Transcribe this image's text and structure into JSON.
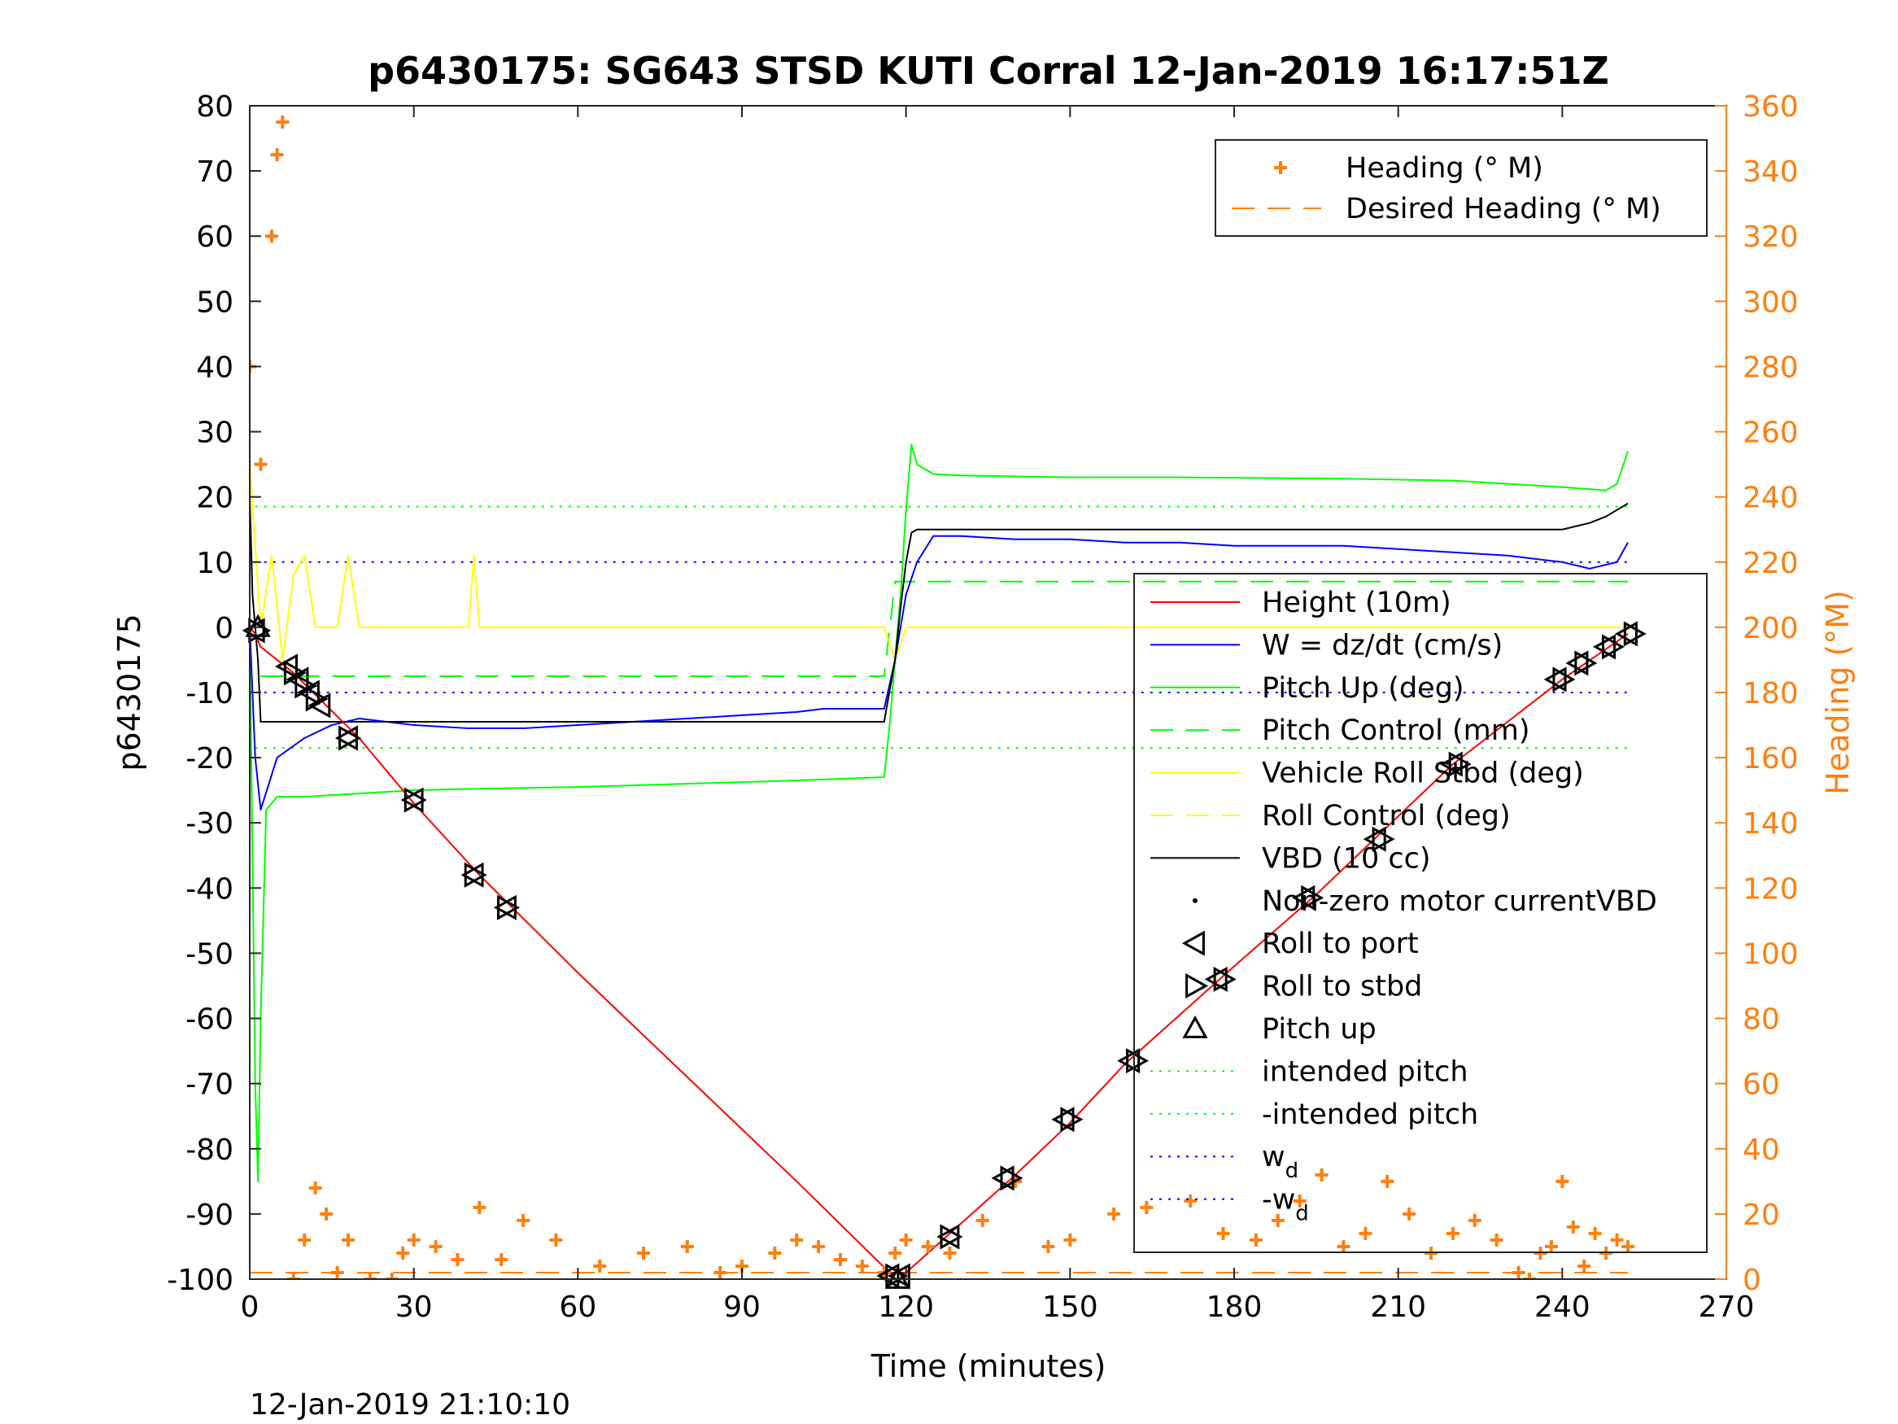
{
  "chart_data": {
    "type": "line",
    "title": "p6430175: SG643 STSD KUTI Corral 12-Jan-2019 16:17:51Z",
    "xlabel": "Time (minutes)",
    "ylabel": "p6430175",
    "ylabel_right": "Heading (°M)",
    "footer": "12-Jan-2019 21:10:10",
    "xlim": [
      0,
      270
    ],
    "ylim": [
      -100,
      80
    ],
    "ylim_right": [
      0,
      360
    ],
    "xticks": [
      "0",
      "30",
      "60",
      "90",
      "120",
      "150",
      "180",
      "210",
      "240",
      "270"
    ],
    "yticks_left": [
      "80",
      "70",
      "60",
      "50",
      "40",
      "30",
      "20",
      "10",
      "0",
      "-10",
      "-20",
      "-30",
      "-40",
      "-50",
      "-60",
      "-70",
      "-80",
      "-90",
      "-100"
    ],
    "yticks_right": [
      "360",
      "340",
      "320",
      "300",
      "280",
      "260",
      "240",
      "220",
      "200",
      "180",
      "160",
      "140",
      "120",
      "100",
      "80",
      "60",
      "40",
      "20",
      "0"
    ],
    "grid": false,
    "legend_upper": {
      "placement": "top-right",
      "entries": [
        "Heading (° M)",
        "Desired Heading (° M)"
      ]
    },
    "legend_lower": {
      "placement": "right",
      "entries": [
        "Height (10m)",
        "W = dz/dt (cm/s)",
        "Pitch Up (deg)",
        "Pitch Control (mm)",
        "Vehicle Roll Stbd (deg)",
        "Roll Control (deg)",
        "VBD (10 cc)",
        "Non-zero motor currentVBD",
        "Roll to port",
        "Roll to stbd",
        "Pitch up",
        "intended pitch",
        "-intended pitch",
        "w",
        "-w"
      ],
      "subscript": "d"
    },
    "colors": {
      "height": "#ff0000",
      "w": "#0000ff",
      "pitch": "#00ff00",
      "roll": "#ffff00",
      "vbd": "#000000",
      "heading": "#ff7f0e"
    },
    "series": [
      {
        "name": "Height (10m)",
        "x": [
          0,
          1,
          2,
          8,
          14,
          20,
          30,
          42,
          48,
          60,
          80,
          100,
          117,
          120,
          128,
          140,
          150,
          160,
          180,
          195,
          205,
          220,
          240,
          252
        ],
        "y": [
          0,
          -1,
          -3,
          -7,
          -12,
          -17,
          -27,
          -38,
          -43,
          -53,
          -69,
          -85,
          -99,
          -99,
          -93,
          -84,
          -76,
          -67,
          -52,
          -41,
          -33,
          -21,
          -8,
          -1
        ]
      },
      {
        "name": "W = dz/dt (cm/s)",
        "x": [
          0,
          1,
          2,
          5,
          10,
          15,
          20,
          30,
          40,
          50,
          60,
          70,
          80,
          90,
          100,
          105,
          110,
          116,
          118,
          120,
          122,
          125,
          130,
          140,
          150,
          160,
          170,
          180,
          190,
          200,
          210,
          220,
          230,
          240,
          245,
          250,
          252
        ],
        "y": [
          0,
          -20,
          -28,
          -20,
          -17,
          -15,
          -14,
          -15,
          -15.5,
          -15.5,
          -15,
          -14.5,
          -14,
          -13.5,
          -13,
          -12.5,
          -12.5,
          -12.5,
          -5,
          5,
          10,
          14,
          14,
          13.5,
          13.5,
          13,
          13,
          12.5,
          12.5,
          12.5,
          12,
          11.5,
          11,
          10,
          9,
          10,
          13
        ]
      },
      {
        "name": "Pitch Up (deg)",
        "x": [
          0,
          1,
          1.5,
          2,
          3,
          5,
          10,
          20,
          30,
          40,
          60,
          80,
          100,
          116,
          117,
          118,
          119,
          120,
          121,
          122,
          125,
          130,
          150,
          170,
          200,
          220,
          240,
          248,
          250,
          252
        ],
        "y": [
          0,
          -70,
          -85,
          -60,
          -28,
          -26,
          -26,
          -25.5,
          -25,
          -24.8,
          -24.5,
          -24,
          -23.5,
          -23,
          -15,
          -5,
          5,
          18,
          28,
          25,
          23.5,
          23.3,
          23,
          23,
          22.8,
          22.5,
          21.5,
          21,
          22,
          27
        ]
      },
      {
        "name": "Pitch Control (mm)",
        "x": [
          2,
          116,
          118,
          252
        ],
        "y": [
          -7.5,
          -7.5,
          7,
          7
        ]
      },
      {
        "name": "Vehicle Roll Stbd (deg)",
        "x": [
          0,
          2,
          4,
          6,
          8,
          10,
          12,
          16,
          18,
          20,
          40,
          41,
          42,
          60,
          100,
          116,
          118,
          120,
          140,
          180,
          200,
          252
        ],
        "y": [
          25,
          0,
          11,
          -5,
          8,
          11,
          0,
          0,
          11,
          0,
          0,
          11,
          0,
          0,
          0,
          0,
          -5,
          0,
          0,
          0,
          0,
          0
        ]
      },
      {
        "name": "VBD (10 cc)",
        "x": [
          0,
          0.5,
          1.5,
          2,
          116,
          118,
          119,
          120,
          121,
          122,
          240,
          245,
          248,
          250,
          252
        ],
        "y": [
          20,
          5,
          -5,
          -14.5,
          -14.5,
          -5,
          3,
          10,
          14.5,
          15,
          15,
          16,
          17,
          18,
          19
        ]
      },
      {
        "name": "Heading (° M)",
        "axis": "right",
        "x": [
          0,
          2,
          4,
          5,
          6,
          8,
          10,
          12,
          14,
          16,
          18,
          22,
          26,
          28,
          30,
          34,
          38,
          42,
          46,
          50,
          56,
          64,
          72,
          80,
          86,
          90,
          96,
          100,
          104,
          108,
          112,
          116,
          118,
          120,
          124,
          128,
          134,
          140,
          146,
          150,
          158,
          164,
          172,
          178,
          184,
          188,
          192,
          196,
          200,
          204,
          208,
          212,
          216,
          220,
          224,
          228,
          232,
          234,
          236,
          238,
          240,
          242,
          244,
          246,
          248,
          250,
          252
        ],
        "y": [
          280,
          250,
          320,
          345,
          355,
          0,
          12,
          28,
          20,
          2,
          12,
          0,
          0,
          8,
          12,
          10,
          6,
          22,
          6,
          18,
          12,
          4,
          8,
          10,
          2,
          4,
          8,
          12,
          10,
          6,
          4,
          2,
          8,
          12,
          10,
          8,
          18,
          30,
          10,
          12,
          20,
          22,
          24,
          14,
          12,
          18,
          24,
          32,
          10,
          14,
          30,
          20,
          8,
          14,
          18,
          12,
          2,
          0,
          8,
          10,
          30,
          16,
          4,
          14,
          8,
          12,
          10
        ]
      },
      {
        "name": "Desired Heading (° M)",
        "axis": "right",
        "x": [
          0,
          252
        ],
        "y": [
          2,
          2
        ]
      }
    ],
    "reference_lines": [
      {
        "name": "intended pitch",
        "y": 18.5
      },
      {
        "name": "-intended pitch",
        "y": -18.5
      },
      {
        "name": "w_d",
        "y": 10
      },
      {
        "name": "-w_d",
        "y": -10
      }
    ],
    "markers": {
      "roll_to_port": {
        "x": [
          1,
          7,
          9,
          11,
          13,
          18,
          30,
          41,
          47,
          117,
          119,
          128,
          138,
          149,
          161,
          177,
          193,
          206,
          220,
          239,
          243,
          248,
          252
        ],
        "y": [
          -0.5,
          -6,
          -8,
          -10,
          -12,
          -17,
          -26.5,
          -38,
          -43,
          -99.5,
          -99.5,
          -93.5,
          -84.5,
          -75.5,
          -66.5,
          -54,
          -41.5,
          -32.5,
          -21,
          -8,
          -5.5,
          -3,
          -1
        ]
      },
      "roll_to_stbd": {
        "x": [
          1.5,
          8,
          10,
          12,
          18,
          30,
          41,
          47,
          118,
          128,
          139,
          150,
          162,
          178,
          194,
          207,
          221,
          240,
          244,
          249,
          253
        ],
        "y": [
          -0.5,
          -7,
          -9,
          -11,
          -17,
          -26.5,
          -38,
          -43,
          -99.5,
          -93.5,
          -84.5,
          -75.5,
          -66.5,
          -54,
          -41.5,
          -32.5,
          -21,
          -8,
          -5.5,
          -3,
          -1
        ]
      },
      "pitch_up": {
        "x": [
          1.5,
          118.5
        ],
        "y": [
          0,
          -100
        ]
      }
    }
  }
}
